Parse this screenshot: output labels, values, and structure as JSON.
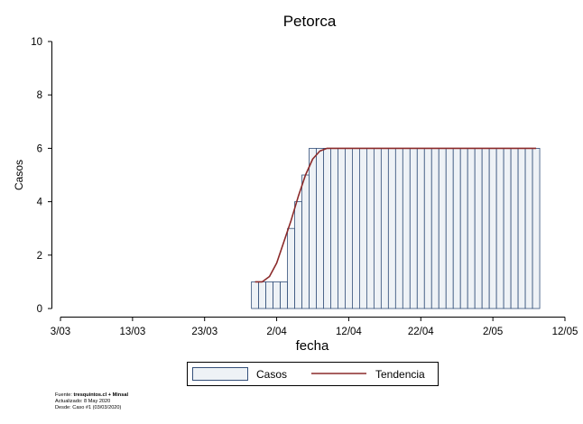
{
  "chart_data": {
    "type": "bar",
    "title": "Petorca",
    "xlabel": "fecha",
    "ylabel": "Casos",
    "ylim": [
      0,
      10
    ],
    "yticks": [
      0,
      2,
      4,
      6,
      8,
      10
    ],
    "xlim": [
      "2020-03-03",
      "2020-05-12"
    ],
    "xticks": [
      {
        "date": "2020-03-03",
        "label": "3/03"
      },
      {
        "date": "2020-03-13",
        "label": "13/03"
      },
      {
        "date": "2020-03-23",
        "label": "23/03"
      },
      {
        "date": "2020-04-02",
        "label": "2/04"
      },
      {
        "date": "2020-04-12",
        "label": "12/04"
      },
      {
        "date": "2020-04-22",
        "label": "22/04"
      },
      {
        "date": "2020-05-02",
        "label": "2/05"
      },
      {
        "date": "2020-05-12",
        "label": "12/05"
      }
    ],
    "bar_color": "#eef2f6",
    "bar_edge_color": "#34507a",
    "trend_color": "#8b2a2a",
    "legend": {
      "position": "bottom",
      "items": [
        "Casos",
        "Tendencia"
      ]
    },
    "series": [
      {
        "name": "Casos",
        "type": "bar",
        "x": [
          "2020-03-30",
          "2020-03-31",
          "2020-04-01",
          "2020-04-02",
          "2020-04-03",
          "2020-04-04",
          "2020-04-05",
          "2020-04-06",
          "2020-04-07",
          "2020-04-08",
          "2020-04-09",
          "2020-04-10",
          "2020-04-11",
          "2020-04-12",
          "2020-04-13",
          "2020-04-14",
          "2020-04-15",
          "2020-04-16",
          "2020-04-17",
          "2020-04-18",
          "2020-04-19",
          "2020-04-20",
          "2020-04-21",
          "2020-04-22",
          "2020-04-23",
          "2020-04-24",
          "2020-04-25",
          "2020-04-26",
          "2020-04-27",
          "2020-04-28",
          "2020-04-29",
          "2020-04-30",
          "2020-05-01",
          "2020-05-02",
          "2020-05-03",
          "2020-05-04",
          "2020-05-05",
          "2020-05-06",
          "2020-05-07",
          "2020-05-08"
        ],
        "values": [
          1,
          1,
          1,
          1,
          1,
          3,
          4,
          5,
          6,
          6,
          6,
          6,
          6,
          6,
          6,
          6,
          6,
          6,
          6,
          6,
          6,
          6,
          6,
          6,
          6,
          6,
          6,
          6,
          6,
          6,
          6,
          6,
          6,
          6,
          6,
          6,
          6,
          6,
          6,
          6
        ]
      },
      {
        "name": "Tendencia",
        "type": "line",
        "x": [
          "2020-03-30",
          "2020-03-31",
          "2020-04-01",
          "2020-04-02",
          "2020-04-03",
          "2020-04-04",
          "2020-04-05",
          "2020-04-06",
          "2020-04-07",
          "2020-04-08",
          "2020-04-09",
          "2020-04-10",
          "2020-04-11",
          "2020-04-12",
          "2020-04-13",
          "2020-04-14",
          "2020-04-15",
          "2020-04-16",
          "2020-04-17",
          "2020-04-18",
          "2020-04-19",
          "2020-04-20",
          "2020-04-21",
          "2020-04-22",
          "2020-04-23",
          "2020-04-24",
          "2020-04-25",
          "2020-04-26",
          "2020-04-27",
          "2020-04-28",
          "2020-04-29",
          "2020-04-30",
          "2020-05-01",
          "2020-05-02",
          "2020-05-03",
          "2020-05-04",
          "2020-05-05",
          "2020-05-06",
          "2020-05-07",
          "2020-05-08"
        ],
        "values": [
          1.0,
          1.0,
          1.2,
          1.7,
          2.5,
          3.3,
          4.2,
          5.0,
          5.6,
          5.9,
          6.0,
          6.0,
          6.0,
          6.0,
          6.0,
          6.0,
          6.0,
          6.0,
          6.0,
          6.0,
          6.0,
          6.0,
          6.0,
          6.0,
          6.0,
          6.0,
          6.0,
          6.0,
          6.0,
          6.0,
          6.0,
          6.0,
          6.0,
          6.0,
          6.0,
          6.0,
          6.0,
          6.0,
          6.0,
          6.0
        ]
      }
    ]
  },
  "source": {
    "label": "Fuente:",
    "site": "tresquintos.cl + Minsal",
    "updated": "Actualizado: 8 May 2020",
    "since": "Desde: Caso #1  (03/03/2020)"
  }
}
